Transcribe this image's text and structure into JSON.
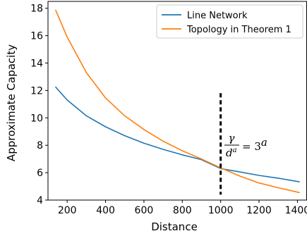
{
  "chart_data": {
    "type": "line",
    "title": "",
    "xlabel": "Distance",
    "ylabel": "Approximate Capacity",
    "xlim": [
      100,
      1450
    ],
    "ylim": [
      4,
      18.5
    ],
    "xticks": [
      200,
      400,
      600,
      800,
      1000,
      1200,
      1400
    ],
    "yticks": [
      4,
      6,
      8,
      10,
      12,
      14,
      16,
      18
    ],
    "grid": false,
    "legend_position": "top-right",
    "series": [
      {
        "name": "Line Network",
        "color": "#1f77b4",
        "x": [
          140,
          200,
          300,
          400,
          500,
          600,
          700,
          800,
          900,
          1000,
          1100,
          1200,
          1300,
          1410
        ],
        "y": [
          12.25,
          11.3,
          10.15,
          9.35,
          8.7,
          8.15,
          7.7,
          7.3,
          6.95,
          6.3,
          6.05,
          5.8,
          5.6,
          5.33
        ]
      },
      {
        "name": "Topology in Theorem 1",
        "color": "#ff7f0e",
        "x": [
          140,
          200,
          300,
          400,
          500,
          600,
          700,
          800,
          900,
          1000,
          1100,
          1200,
          1300,
          1410
        ],
        "y": [
          17.85,
          15.9,
          13.3,
          11.45,
          10.15,
          9.15,
          8.3,
          7.6,
          7.0,
          6.35,
          5.75,
          5.25,
          4.9,
          4.55
        ]
      }
    ],
    "vline": {
      "x": 1000,
      "y_range": [
        4.4,
        11.8
      ],
      "style": "dashed",
      "color": "#000000"
    },
    "annotation": {
      "numerator": "γ",
      "denominator_base": "d",
      "denominator_exp": "a",
      "rhs_base": "= 3",
      "rhs_exp": "a"
    }
  }
}
